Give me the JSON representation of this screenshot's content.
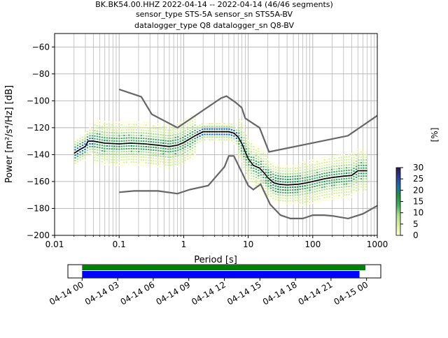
{
  "title": {
    "line1": "BK.BK54.00.HHZ   2022-04-14 -- 2022-04-14  (46/46 segments)",
    "line2": "sensor_type STS-5A sensor_sn STS5A-BV",
    "line3": "datalogger_type Q8 datalogger_sn Q8-BV"
  },
  "colors": {
    "mean_line": "#000000",
    "model_lines": "#666666",
    "grid": "#b0b0b0",
    "coverage_data": "#008000",
    "coverage_processed": "#0000ff",
    "colormap": [
      "#ffffcc",
      "#d9f0a3",
      "#addd8e",
      "#41ab5d",
      "#238b45",
      "#1d6fa5",
      "#2c3b8f",
      "#2a1a4a"
    ]
  },
  "chart_data": [
    {
      "type": "heatmap",
      "xlabel": "Period [s]",
      "ylabel": "Power [m²/s⁴/Hz] [dB]",
      "xscale": "log",
      "xlim": [
        0.01,
        1000
      ],
      "ylim": [
        -200,
        -50
      ],
      "xticks": [
        {
          "value": 0.01,
          "label": "0.01"
        },
        {
          "value": 0.1,
          "label": "0.1"
        },
        {
          "value": 1,
          "label": "1"
        },
        {
          "value": 10,
          "label": "10"
        },
        {
          "value": 100,
          "label": "100"
        },
        {
          "value": 1000,
          "label": "1000"
        }
      ],
      "yticks": [
        -60,
        -80,
        -100,
        -120,
        -140,
        -160,
        -180,
        -200
      ],
      "ytick_labels": [
        "−60",
        "−80",
        "−100",
        "−120",
        "−140",
        "−160",
        "−180",
        "−200"
      ],
      "grid": true,
      "mean_curve": [
        [
          0.02,
          -139
        ],
        [
          0.025,
          -136
        ],
        [
          0.03,
          -134
        ],
        [
          0.033,
          -130
        ],
        [
          0.04,
          -130
        ],
        [
          0.06,
          -131.5
        ],
        [
          0.1,
          -132
        ],
        [
          0.15,
          -131.5
        ],
        [
          0.25,
          -132
        ],
        [
          0.4,
          -133
        ],
        [
          0.6,
          -134
        ],
        [
          0.8,
          -133
        ],
        [
          1.0,
          -131
        ],
        [
          1.5,
          -126
        ],
        [
          2.0,
          -123
        ],
        [
          3.0,
          -123
        ],
        [
          4.0,
          -123
        ],
        [
          5.0,
          -123
        ],
        [
          6.0,
          -124
        ],
        [
          7.0,
          -127
        ],
        [
          8.0,
          -132
        ],
        [
          9.0,
          -138
        ],
        [
          10,
          -143
        ],
        [
          12,
          -148
        ],
        [
          15,
          -150
        ],
        [
          18,
          -154
        ],
        [
          20,
          -157
        ],
        [
          25,
          -161
        ],
        [
          30,
          -162
        ],
        [
          40,
          -162.5
        ],
        [
          60,
          -162
        ],
        [
          80,
          -161
        ],
        [
          100,
          -160
        ],
        [
          150,
          -158
        ],
        [
          200,
          -157
        ],
        [
          300,
          -156
        ],
        [
          400,
          -155.5
        ],
        [
          500,
          -152
        ],
        [
          700,
          -152
        ]
      ],
      "high_noise_model": [
        [
          0.1,
          -91.5
        ],
        [
          0.22,
          -97
        ],
        [
          0.32,
          -110
        ],
        [
          0.8,
          -120
        ],
        [
          3.8,
          -98
        ],
        [
          4.6,
          -96.5
        ],
        [
          6.3,
          -101
        ],
        [
          7.9,
          -105
        ],
        [
          9,
          -113
        ],
        [
          15,
          -120
        ],
        [
          21,
          -138
        ],
        [
          350,
          -126
        ],
        [
          1000,
          -111
        ]
      ],
      "low_noise_model": [
        [
          0.1,
          -168
        ],
        [
          0.17,
          -167
        ],
        [
          0.4,
          -167
        ],
        [
          0.8,
          -169
        ],
        [
          1.24,
          -166
        ],
        [
          2.4,
          -163
        ],
        [
          4.3,
          -149
        ],
        [
          5,
          -141
        ],
        [
          6,
          -141
        ],
        [
          10,
          -163
        ],
        [
          12,
          -166
        ],
        [
          15.6,
          -162
        ],
        [
          21.9,
          -177
        ],
        [
          31.6,
          -185
        ],
        [
          45,
          -187.5
        ],
        [
          70,
          -187.5
        ],
        [
          100,
          -185
        ],
        [
          150,
          -185
        ],
        [
          200,
          -185.5
        ],
        [
          354,
          -187.5
        ],
        [
          600,
          -184
        ],
        [
          1000,
          -178
        ]
      ],
      "colorbar": {
        "label": "[%]",
        "min": 0,
        "max": 30,
        "ticks": [
          0,
          5,
          10,
          15,
          20,
          25,
          30
        ]
      }
    },
    {
      "type": "bar",
      "description_id": "data-coverage",
      "x_tick_labels": [
        "04-14 00",
        "04-14 03",
        "04-14 06",
        "04-14 09",
        "04-14 12",
        "04-14 15",
        "04-14 18",
        "04-14 21",
        "04-15 00"
      ],
      "x_ticks_hours": [
        0,
        3,
        6,
        9,
        12,
        15,
        18,
        21,
        24
      ],
      "xlim_hours": [
        -1.2,
        25.2
      ],
      "series": [
        {
          "color": "#008000",
          "start_hours": 0,
          "end_hours": 23.9
        },
        {
          "color": "#0000ff",
          "start_hours": 0,
          "end_hours": 23.4
        }
      ]
    }
  ]
}
